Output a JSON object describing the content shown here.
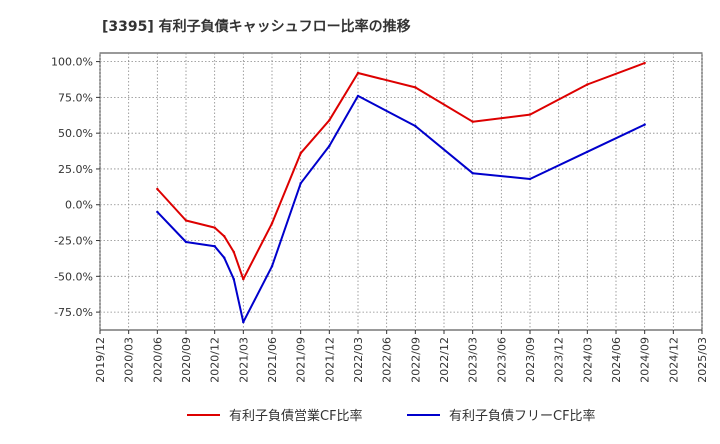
{
  "chart_data": {
    "type": "line",
    "title": "[3395]  有利子負債キャッシュフロー比率の推移",
    "xlabel": "",
    "ylabel": "",
    "ylim": [
      -87.5,
      106
    ],
    "y_ticks": [
      100,
      75,
      50,
      25,
      0,
      -25,
      -50,
      -75
    ],
    "y_tick_labels": [
      "100.0%",
      "75.0%",
      "50.0%",
      "25.0%",
      "0.0%",
      "-25.0%",
      "-50.0%",
      "-75.0%"
    ],
    "x_ticks": [
      "2019-12",
      "2020-03",
      "2020-06",
      "2020-09",
      "2020-12",
      "2021-03",
      "2021-06",
      "2021-09",
      "2021-12",
      "2022-03",
      "2022-06",
      "2022-09",
      "2022-12",
      "2023-03",
      "2023-06",
      "2023-09",
      "2023-12",
      "2024-03",
      "2024-06",
      "2024-09",
      "2024-12",
      "2025-03"
    ],
    "x_tick_labels": [
      "2019/12",
      "2020/03",
      "2020/06",
      "2020/09",
      "2020/12",
      "2021/03",
      "2021/06",
      "2021/09",
      "2021/12",
      "2022/03",
      "2022/06",
      "2022/09",
      "2022/12",
      "2023/03",
      "2023/06",
      "2023/09",
      "2023/12",
      "2024/03",
      "2024/06",
      "2024/09",
      "2024/12",
      "2025/03"
    ],
    "grid": true,
    "legend_position": "bottom",
    "series": [
      {
        "name": "有利子負債営業CF比率",
        "color": "#dd0000",
        "points": [
          {
            "x": "2020-06",
            "y": 11.0
          },
          {
            "x": "2020-09",
            "y": -11.0
          },
          {
            "x": "2020-12",
            "y": -16.0
          },
          {
            "x": "2021-01",
            "y": -22.0
          },
          {
            "x": "2021-02",
            "y": -33.0
          },
          {
            "x": "2021-03",
            "y": -52.0
          },
          {
            "x": "2021-06",
            "y": -13.0
          },
          {
            "x": "2021-09",
            "y": 36.0
          },
          {
            "x": "2021-12",
            "y": 59.0
          },
          {
            "x": "2022-03",
            "y": 92.0
          },
          {
            "x": "2022-09",
            "y": 82.0
          },
          {
            "x": "2023-03",
            "y": 58.0
          },
          {
            "x": "2023-09",
            "y": 63.0
          },
          {
            "x": "2024-03",
            "y": 84.0
          },
          {
            "x": "2024-09",
            "y": 99.0
          }
        ]
      },
      {
        "name": "有利子負債フリーCF比率",
        "color": "#0000cc",
        "points": [
          {
            "x": "2020-06",
            "y": -5.0
          },
          {
            "x": "2020-09",
            "y": -26.0
          },
          {
            "x": "2020-12",
            "y": -29.0
          },
          {
            "x": "2021-01",
            "y": -37.0
          },
          {
            "x": "2021-02",
            "y": -52.0
          },
          {
            "x": "2021-03",
            "y": -82.0
          },
          {
            "x": "2021-06",
            "y": -43.0
          },
          {
            "x": "2021-09",
            "y": 15.0
          },
          {
            "x": "2021-12",
            "y": 41.0
          },
          {
            "x": "2022-03",
            "y": 76.0
          },
          {
            "x": "2022-09",
            "y": 55.0
          },
          {
            "x": "2023-03",
            "y": 22.0
          },
          {
            "x": "2023-09",
            "y": 18.0
          },
          {
            "x": "2024-03",
            "y": 37.0
          },
          {
            "x": "2024-09",
            "y": 56.0
          }
        ]
      }
    ]
  }
}
